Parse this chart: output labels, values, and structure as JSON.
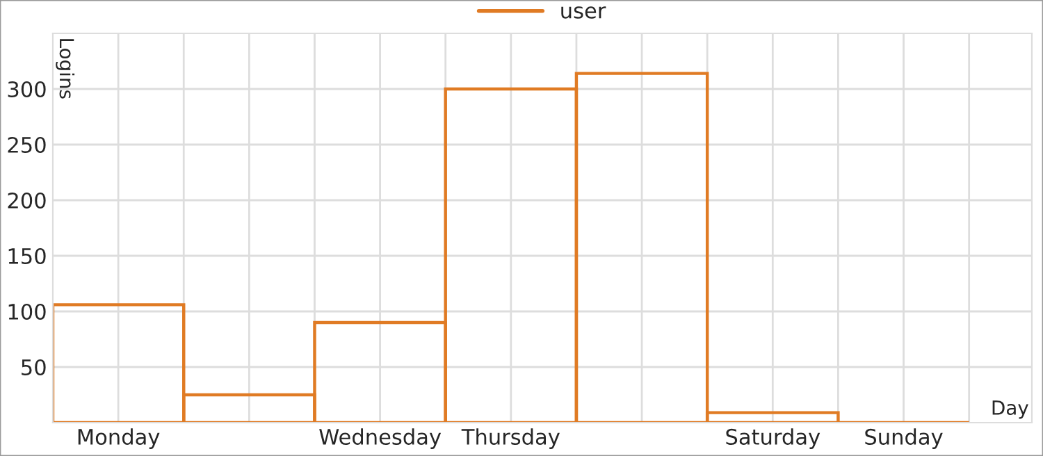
{
  "chart_data": {
    "type": "bar",
    "xlabel": "Day",
    "ylabel": "Logins",
    "categories": [
      "Monday",
      null,
      "Wednesday",
      "Thursday",
      null,
      "Saturday",
      "Sunday"
    ],
    "series": [
      {
        "name": "user",
        "color": "#e07b24",
        "values": [
          106,
          25,
          90,
          300,
          314,
          9,
          0
        ]
      }
    ],
    "ylim": [
      0,
      350
    ],
    "yticks": [
      50,
      100,
      150,
      200,
      250,
      300
    ],
    "grid": true,
    "legend": "top"
  }
}
